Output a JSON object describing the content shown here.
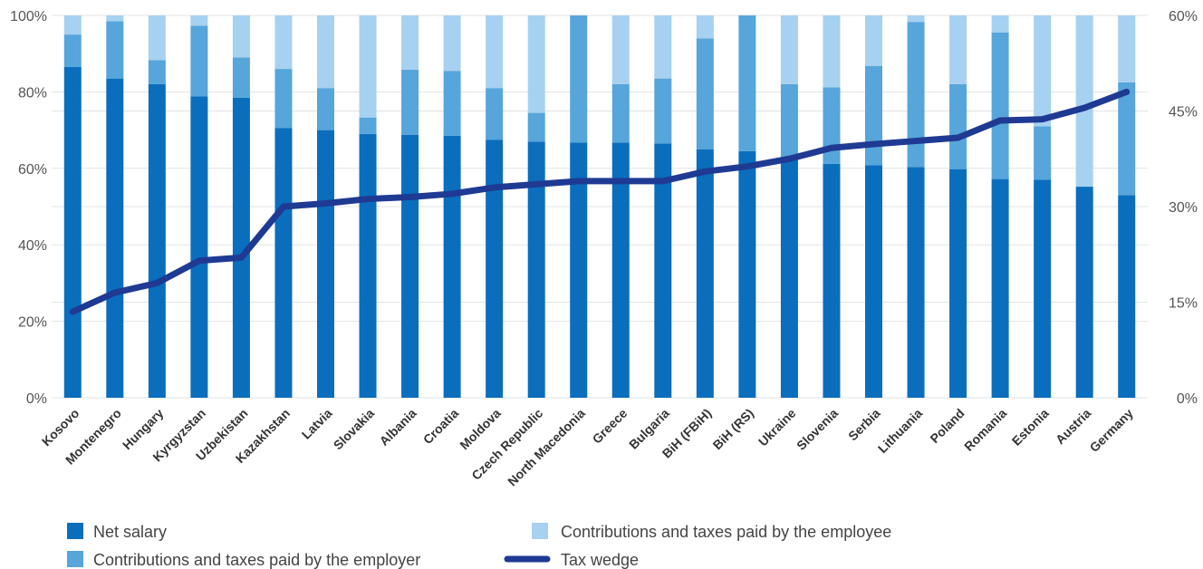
{
  "chart_data": {
    "type": "bar",
    "stacked": true,
    "categories": [
      "Kosovo",
      "Montenegro",
      "Hungary",
      "Kyrgyzstan",
      "Uzbekistan",
      "Kazakhstan",
      "Latvia",
      "Slovakia",
      "Albania",
      "Croatia",
      "Moldova",
      "Czech Republic",
      "North Macedonia",
      "Greece",
      "Bulgaria",
      "BiH (FBiH)",
      "BiH (RS)",
      "Ukraine",
      "Slovenia",
      "Serbia",
      "Lithuania",
      "Poland",
      "Romania",
      "Estonia",
      "Austria",
      "Germany"
    ],
    "series": [
      {
        "name": "Net salary",
        "axis": "left",
        "color": "#0a6ebd",
        "values": [
          86.5,
          83.5,
          82,
          78.8,
          78.5,
          70.5,
          70,
          69,
          68.8,
          68.5,
          67.5,
          67,
          66.7,
          66.7,
          66.5,
          65,
          64.5,
          63,
          61.2,
          60.8,
          60.3,
          59.8,
          57.2,
          57,
          55.2,
          53
        ]
      },
      {
        "name": "Contributions and taxes paid by the employer",
        "axis": "left",
        "color": "#56a5db",
        "values": [
          8.5,
          15,
          6.3,
          18.5,
          10.5,
          15.5,
          11,
          4.3,
          17,
          17,
          13.5,
          7.5,
          33.3,
          15.3,
          17,
          29,
          35.5,
          19,
          20,
          26,
          38,
          22.2,
          38.3,
          14,
          0,
          29.5
        ]
      },
      {
        "name": "Contributions and taxes paid by the employee",
        "axis": "left",
        "color": "#a7d1f0",
        "values": [
          5,
          1.5,
          11.7,
          2.7,
          11,
          14,
          19,
          26.7,
          14.2,
          14.5,
          19,
          25.5,
          0,
          18,
          16.5,
          6,
          0,
          18,
          18.8,
          13.2,
          1.7,
          18,
          4.5,
          29,
          44.8,
          17.5
        ]
      },
      {
        "name": "Tax wedge",
        "axis": "right",
        "type": "line",
        "color": "#1f3a93",
        "values": [
          13.5,
          16.5,
          18,
          21.5,
          22,
          30,
          30.5,
          31.2,
          31.5,
          32,
          33,
          33.5,
          34,
          34,
          34,
          35.5,
          36.3,
          37.5,
          39.2,
          39.8,
          40.3,
          40.8,
          43.5,
          43.7,
          45.5,
          48
        ]
      }
    ],
    "y_left": {
      "ylim": [
        0,
        100
      ],
      "ticks": [
        "0%",
        "20%",
        "40%",
        "60%",
        "80%",
        "100%"
      ]
    },
    "y_right": {
      "ylim": [
        0,
        60
      ],
      "ticks": [
        "0%",
        "15%",
        "30%",
        "45%",
        "60%"
      ]
    },
    "grid": true,
    "legend_position": "bottom"
  },
  "legend": [
    {
      "label": "Net salary",
      "color": "#0a6ebd",
      "kind": "square"
    },
    {
      "label": "Contributions and taxes paid by the employee",
      "color": "#a7d1f0",
      "kind": "square"
    },
    {
      "label": "Contributions and taxes paid by the employer",
      "color": "#56a5db",
      "kind": "square"
    },
    {
      "label": "Tax wedge",
      "color": "#1f3a93",
      "kind": "line"
    }
  ]
}
